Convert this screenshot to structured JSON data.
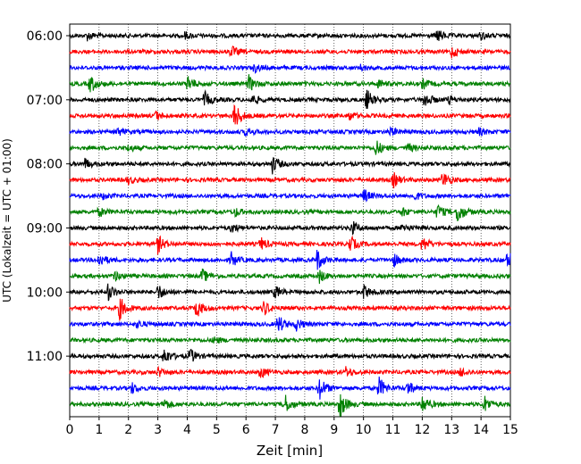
{
  "chart_data": {
    "type": "line",
    "title": "",
    "xlabel": "Zeit  [min]",
    "ylabel": "UTC (Lokalzeit = UTC + 01:00)",
    "xlim": [
      0,
      15
    ],
    "x_ticks": [
      0,
      1,
      2,
      3,
      4,
      5,
      6,
      7,
      8,
      9,
      10,
      11,
      12,
      13,
      14,
      15
    ],
    "x_tick_labels": [
      "0",
      "1",
      "2",
      "3",
      "4",
      "5",
      "6",
      "7",
      "8",
      "9",
      "10",
      "11",
      "12",
      "13",
      "14",
      "15"
    ],
    "y_tick_labels": [
      "06:00",
      "07:00",
      "08:00",
      "09:00",
      "10:00",
      "11:00"
    ],
    "trace_interval_minutes": 15,
    "grid": "vertical dotted lines at each minute",
    "legend": "none",
    "colors": [
      "#000000",
      "#ff0000",
      "#0000ff",
      "#008000"
    ],
    "series": [
      {
        "start": "06:00",
        "color": "#000000",
        "events": [
          {
            "t": 0.6,
            "a": 0.45
          },
          {
            "t": 3.9,
            "a": 0.4
          },
          {
            "t": 12.5,
            "a": 0.75
          },
          {
            "t": 14.0,
            "a": 0.4
          }
        ]
      },
      {
        "start": "06:15",
        "color": "#ff0000",
        "events": [
          {
            "t": 5.5,
            "a": 0.6
          },
          {
            "t": 13.0,
            "a": 0.65
          }
        ]
      },
      {
        "start": "06:30",
        "color": "#0000ff",
        "events": [
          {
            "t": 6.3,
            "a": 0.45
          },
          {
            "t": 9.9,
            "a": 0.3
          }
        ]
      },
      {
        "start": "06:45",
        "color": "#008000",
        "events": [
          {
            "t": 0.7,
            "a": 1.0
          },
          {
            "t": 4.0,
            "a": 1.0
          },
          {
            "t": 6.1,
            "a": 0.9
          },
          {
            "t": 10.5,
            "a": 0.5
          },
          {
            "t": 12.0,
            "a": 0.6
          }
        ]
      },
      {
        "start": "07:00",
        "color": "#000000",
        "events": [
          {
            "t": 4.6,
            "a": 0.85
          },
          {
            "t": 6.2,
            "a": 0.55
          },
          {
            "t": 10.1,
            "a": 1.2
          },
          {
            "t": 12.1,
            "a": 0.9
          },
          {
            "t": 12.9,
            "a": 0.5
          }
        ]
      },
      {
        "start": "07:15",
        "color": "#ff0000",
        "events": [
          {
            "t": 2.9,
            "a": 0.5
          },
          {
            "t": 5.6,
            "a": 1.6
          },
          {
            "t": 9.5,
            "a": 0.5
          }
        ]
      },
      {
        "start": "07:30",
        "color": "#0000ff",
        "events": [
          {
            "t": 1.6,
            "a": 0.5
          },
          {
            "t": 6.0,
            "a": 0.45
          },
          {
            "t": 10.9,
            "a": 0.5
          },
          {
            "t": 13.9,
            "a": 0.45
          }
        ]
      },
      {
        "start": "07:45",
        "color": "#008000",
        "events": [
          {
            "t": 2.0,
            "a": 0.4
          },
          {
            "t": 10.4,
            "a": 1.0
          },
          {
            "t": 11.5,
            "a": 0.5
          }
        ]
      },
      {
        "start": "08:00",
        "color": "#000000",
        "events": [
          {
            "t": 0.5,
            "a": 0.6
          },
          {
            "t": 6.9,
            "a": 1.0
          }
        ]
      },
      {
        "start": "08:15",
        "color": "#ff0000",
        "events": [
          {
            "t": 2.0,
            "a": 0.4
          },
          {
            "t": 11.0,
            "a": 0.9
          },
          {
            "t": 12.7,
            "a": 0.95
          }
        ]
      },
      {
        "start": "08:30",
        "color": "#0000ff",
        "events": [
          {
            "t": 1.1,
            "a": 0.35
          },
          {
            "t": 10.0,
            "a": 0.8
          },
          {
            "t": 11.7,
            "a": 0.5
          }
        ]
      },
      {
        "start": "08:45",
        "color": "#008000",
        "events": [
          {
            "t": 1.0,
            "a": 0.5
          },
          {
            "t": 5.6,
            "a": 0.5
          },
          {
            "t": 11.3,
            "a": 0.5
          },
          {
            "t": 12.5,
            "a": 0.9
          },
          {
            "t": 13.2,
            "a": 1.3
          }
        ]
      },
      {
        "start": "09:00",
        "color": "#000000",
        "events": [
          {
            "t": 5.5,
            "a": 0.55
          },
          {
            "t": 9.6,
            "a": 0.8
          },
          {
            "t": 11.3,
            "a": 0.5
          }
        ]
      },
      {
        "start": "09:15",
        "color": "#ff0000",
        "events": [
          {
            "t": 3.0,
            "a": 1.0
          },
          {
            "t": 6.5,
            "a": 0.7
          },
          {
            "t": 9.5,
            "a": 1.1
          },
          {
            "t": 12.0,
            "a": 0.9
          }
        ]
      },
      {
        "start": "09:30",
        "color": "#0000ff",
        "events": [
          {
            "t": 1.0,
            "a": 0.8
          },
          {
            "t": 5.5,
            "a": 0.8
          },
          {
            "t": 8.4,
            "a": 1.3
          },
          {
            "t": 11.0,
            "a": 0.8
          },
          {
            "t": 14.9,
            "a": 1.0
          }
        ]
      },
      {
        "start": "09:45",
        "color": "#008000",
        "events": [
          {
            "t": 1.5,
            "a": 0.6
          },
          {
            "t": 4.5,
            "a": 0.8
          },
          {
            "t": 8.5,
            "a": 0.7
          }
        ]
      },
      {
        "start": "10:00",
        "color": "#000000",
        "events": [
          {
            "t": 1.3,
            "a": 1.0
          },
          {
            "t": 3.0,
            "a": 0.9
          },
          {
            "t": 7.0,
            "a": 0.7
          },
          {
            "t": 10.0,
            "a": 0.8
          }
        ]
      },
      {
        "start": "10:15",
        "color": "#ff0000",
        "events": [
          {
            "t": 1.7,
            "a": 1.3
          },
          {
            "t": 4.3,
            "a": 1.1
          },
          {
            "t": 6.6,
            "a": 0.8
          }
        ]
      },
      {
        "start": "10:30",
        "color": "#0000ff",
        "events": [
          {
            "t": 2.3,
            "a": 0.4
          },
          {
            "t": 7.1,
            "a": 1.0
          },
          {
            "t": 7.7,
            "a": 0.7
          }
        ]
      },
      {
        "start": "10:45",
        "color": "#008000",
        "events": [
          {
            "t": 4.9,
            "a": 0.4
          }
        ]
      },
      {
        "start": "11:00",
        "color": "#000000",
        "events": [
          {
            "t": 3.2,
            "a": 1.0
          },
          {
            "t": 4.1,
            "a": 0.8
          }
        ]
      },
      {
        "start": "11:15",
        "color": "#ff0000",
        "events": [
          {
            "t": 3.0,
            "a": 0.5
          },
          {
            "t": 6.5,
            "a": 0.6
          },
          {
            "t": 9.4,
            "a": 0.55
          },
          {
            "t": 13.3,
            "a": 0.5
          }
        ]
      },
      {
        "start": "11:30",
        "color": "#0000ff",
        "events": [
          {
            "t": 2.1,
            "a": 0.6
          },
          {
            "t": 8.5,
            "a": 1.3
          },
          {
            "t": 10.5,
            "a": 1.4
          },
          {
            "t": 11.5,
            "a": 0.8
          }
        ]
      },
      {
        "start": "11:45",
        "color": "#008000",
        "events": [
          {
            "t": 3.2,
            "a": 0.7
          },
          {
            "t": 7.3,
            "a": 1.2
          },
          {
            "t": 9.2,
            "a": 1.5
          },
          {
            "t": 12.0,
            "a": 1.1
          },
          {
            "t": 14.1,
            "a": 1.0
          }
        ]
      }
    ]
  }
}
